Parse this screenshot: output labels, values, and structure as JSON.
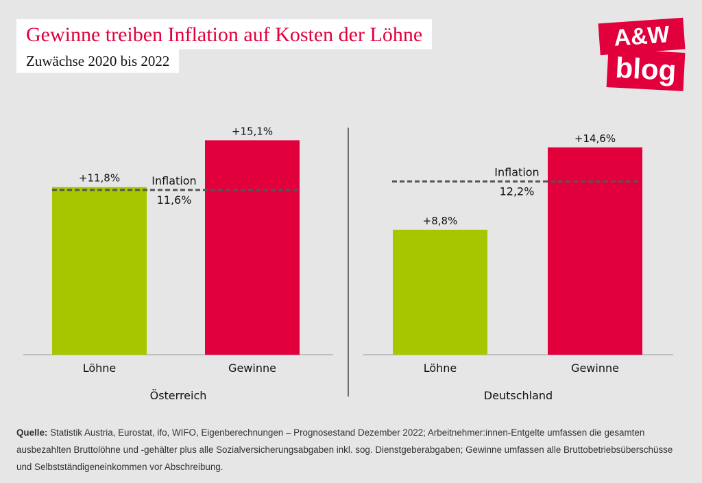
{
  "header": {
    "title": "Gewinne treiben Inflation auf Kosten der Löhne",
    "subtitle": "Zuwächse 2020 bis 2022"
  },
  "logo": {
    "top": "A&W",
    "bottom": "blog"
  },
  "colors": {
    "loehne": "#a8c600",
    "gewinne": "#e1003c",
    "inflation": "#555555",
    "accent": "#e1003c"
  },
  "chart_data": [
    {
      "type": "bar",
      "panel": "Österreich",
      "categories": [
        "Löhne",
        "Gewinne"
      ],
      "values": [
        11.8,
        15.1
      ],
      "value_labels": [
        "+11,8%",
        "+15,1%"
      ],
      "reference_line": {
        "name": "Inflation",
        "value": 11.6,
        "label": "11,6%"
      },
      "ylim": [
        0,
        18
      ]
    },
    {
      "type": "bar",
      "panel": "Deutschland",
      "categories": [
        "Löhne",
        "Gewinne"
      ],
      "values": [
        8.8,
        14.6
      ],
      "value_labels": [
        "+8,8%",
        "+14,6%"
      ],
      "reference_line": {
        "name": "Inflation",
        "value": 12.2,
        "label": "12,2%"
      },
      "ylim": [
        0,
        18
      ]
    }
  ],
  "footnote": {
    "label": "Quelle:",
    "text": " Statistik Austria, Eurostat, ifo, WIFO, Eigenberechnungen – Prognosestand Dezember 2022; Arbeitnehmer:innen-Entgelte umfassen die gesamten ausbezahlten Bruttolöhne und -gehälter plus alle Sozialversicherungsabgaben inkl. sog. Dienstgeberabgaben; Gewinne umfassen alle Bruttobetriebsüberschüsse und Selbstständigeneinkommen vor Abschreibung."
  }
}
